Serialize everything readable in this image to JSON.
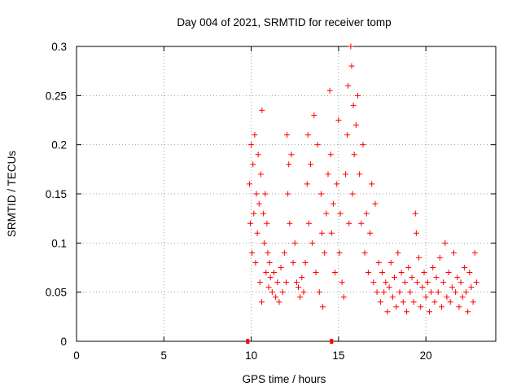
{
  "chart_data": {
    "type": "scatter",
    "title": "Day 004 of 2021, SRMTID for receiver tomp",
    "xlabel": "GPS time / hours",
    "ylabel": "SRMTID / TECUs",
    "xlim": [
      0,
      24
    ],
    "ylim": [
      0,
      0.3
    ],
    "x_ticks": [
      0,
      5,
      10,
      15,
      20
    ],
    "y_ticks": [
      0,
      0.05,
      0.1,
      0.15,
      0.2,
      0.25,
      0.3
    ],
    "x_tick_labels": [
      "0",
      "5",
      "10",
      "15",
      "20"
    ],
    "y_tick_labels": [
      "0",
      "0.05",
      "0.1",
      "0.15",
      "0.2",
      "0.25",
      "0.3"
    ],
    "grid": true,
    "marker": "+",
    "color": "#ff0000",
    "zero_markers_x": [
      9.8,
      14.6
    ],
    "series": [
      {
        "name": "SRMTID",
        "points": [
          [
            9.9,
            0.16
          ],
          [
            9.95,
            0.12
          ],
          [
            10.0,
            0.2
          ],
          [
            10.05,
            0.09
          ],
          [
            10.1,
            0.18
          ],
          [
            10.15,
            0.13
          ],
          [
            10.2,
            0.21
          ],
          [
            10.25,
            0.08
          ],
          [
            10.3,
            0.15
          ],
          [
            10.35,
            0.11
          ],
          [
            10.4,
            0.19
          ],
          [
            10.45,
            0.14
          ],
          [
            10.5,
            0.06
          ],
          [
            10.55,
            0.17
          ],
          [
            10.6,
            0.04
          ],
          [
            10.62,
            0.235
          ],
          [
            10.7,
            0.13
          ],
          [
            10.75,
            0.1
          ],
          [
            10.8,
            0.15
          ],
          [
            10.85,
            0.07
          ],
          [
            10.9,
            0.12
          ],
          [
            10.95,
            0.09
          ],
          [
            11.0,
            0.055
          ],
          [
            11.05,
            0.08
          ],
          [
            11.1,
            0.065
          ],
          [
            11.2,
            0.05
          ],
          [
            11.3,
            0.07
          ],
          [
            11.4,
            0.045
          ],
          [
            11.5,
            0.06
          ],
          [
            11.6,
            0.04
          ],
          [
            11.7,
            0.075
          ],
          [
            11.8,
            0.05
          ],
          [
            11.9,
            0.09
          ],
          [
            12.0,
            0.06
          ],
          [
            12.05,
            0.21
          ],
          [
            12.1,
            0.15
          ],
          [
            12.15,
            0.18
          ],
          [
            12.2,
            0.12
          ],
          [
            12.3,
            0.19
          ],
          [
            12.4,
            0.08
          ],
          [
            12.5,
            0.1
          ],
          [
            12.6,
            0.06
          ],
          [
            12.7,
            0.055
          ],
          [
            12.8,
            0.045
          ],
          [
            12.9,
            0.065
          ],
          [
            13.0,
            0.05
          ],
          [
            13.1,
            0.08
          ],
          [
            13.2,
            0.16
          ],
          [
            13.25,
            0.21
          ],
          [
            13.3,
            0.12
          ],
          [
            13.4,
            0.18
          ],
          [
            13.5,
            0.1
          ],
          [
            13.6,
            0.23
          ],
          [
            13.7,
            0.07
          ],
          [
            13.8,
            0.2
          ],
          [
            13.9,
            0.05
          ],
          [
            14.0,
            0.15
          ],
          [
            14.05,
            0.11
          ],
          [
            14.1,
            0.035
          ],
          [
            14.2,
            0.09
          ],
          [
            14.3,
            0.13
          ],
          [
            14.4,
            0.17
          ],
          [
            14.5,
            0.255
          ],
          [
            14.55,
            0.19
          ],
          [
            14.6,
            0.11
          ],
          [
            14.7,
            0.14
          ],
          [
            14.8,
            0.07
          ],
          [
            14.9,
            0.16
          ],
          [
            15.0,
            0.225
          ],
          [
            15.05,
            0.09
          ],
          [
            15.1,
            0.13
          ],
          [
            15.2,
            0.06
          ],
          [
            15.3,
            0.045
          ],
          [
            15.4,
            0.17
          ],
          [
            15.5,
            0.21
          ],
          [
            15.55,
            0.26
          ],
          [
            15.6,
            0.12
          ],
          [
            15.7,
            0.3
          ],
          [
            15.75,
            0.28
          ],
          [
            15.8,
            0.15
          ],
          [
            15.85,
            0.24
          ],
          [
            15.9,
            0.19
          ],
          [
            16.0,
            0.22
          ],
          [
            16.1,
            0.25
          ],
          [
            16.2,
            0.17
          ],
          [
            16.3,
            0.12
          ],
          [
            16.4,
            0.2
          ],
          [
            16.5,
            0.09
          ],
          [
            16.6,
            0.13
          ],
          [
            16.7,
            0.07
          ],
          [
            16.8,
            0.11
          ],
          [
            16.9,
            0.16
          ],
          [
            17.0,
            0.06
          ],
          [
            17.1,
            0.14
          ],
          [
            17.2,
            0.05
          ],
          [
            17.3,
            0.08
          ],
          [
            17.4,
            0.04
          ],
          [
            17.5,
            0.07
          ],
          [
            17.6,
            0.05
          ],
          [
            17.7,
            0.06
          ],
          [
            17.8,
            0.03
          ],
          [
            17.9,
            0.055
          ],
          [
            18.0,
            0.08
          ],
          [
            18.1,
            0.045
          ],
          [
            18.2,
            0.065
          ],
          [
            18.3,
            0.035
          ],
          [
            18.4,
            0.09
          ],
          [
            18.5,
            0.05
          ],
          [
            18.6,
            0.07
          ],
          [
            18.7,
            0.04
          ],
          [
            18.8,
            0.06
          ],
          [
            18.9,
            0.03
          ],
          [
            19.0,
            0.075
          ],
          [
            19.1,
            0.05
          ],
          [
            19.2,
            0.065
          ],
          [
            19.3,
            0.04
          ],
          [
            19.4,
            0.13
          ],
          [
            19.45,
            0.11
          ],
          [
            19.5,
            0.06
          ],
          [
            19.6,
            0.085
          ],
          [
            19.7,
            0.035
          ],
          [
            19.8,
            0.055
          ],
          [
            19.9,
            0.07
          ],
          [
            20.0,
            0.045
          ],
          [
            20.1,
            0.06
          ],
          [
            20.2,
            0.03
          ],
          [
            20.3,
            0.05
          ],
          [
            20.4,
            0.075
          ],
          [
            20.5,
            0.04
          ],
          [
            20.6,
            0.065
          ],
          [
            20.7,
            0.05
          ],
          [
            20.8,
            0.085
          ],
          [
            20.9,
            0.035
          ],
          [
            21.0,
            0.06
          ],
          [
            21.1,
            0.1
          ],
          [
            21.2,
            0.045
          ],
          [
            21.3,
            0.07
          ],
          [
            21.4,
            0.04
          ],
          [
            21.5,
            0.055
          ],
          [
            21.6,
            0.09
          ],
          [
            21.7,
            0.05
          ],
          [
            21.8,
            0.065
          ],
          [
            21.9,
            0.035
          ],
          [
            22.0,
            0.06
          ],
          [
            22.1,
            0.045
          ],
          [
            22.2,
            0.075
          ],
          [
            22.3,
            0.05
          ],
          [
            22.4,
            0.03
          ],
          [
            22.5,
            0.07
          ],
          [
            22.6,
            0.055
          ],
          [
            22.7,
            0.04
          ],
          [
            22.8,
            0.09
          ],
          [
            22.9,
            0.06
          ]
        ]
      }
    ]
  }
}
